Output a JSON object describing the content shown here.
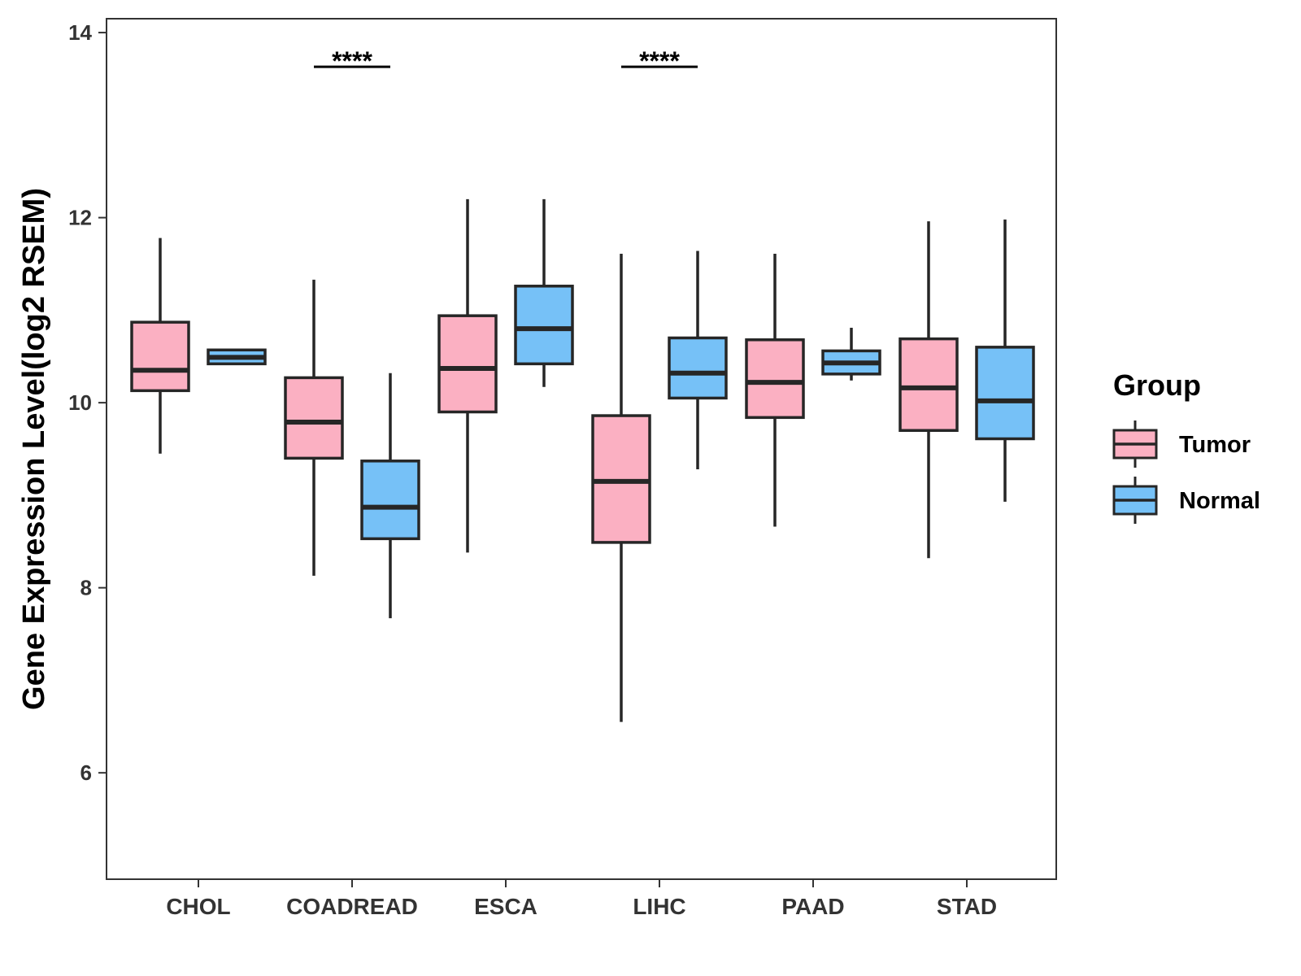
{
  "chart_data": {
    "type": "boxplot",
    "title": "",
    "xlabel": "",
    "ylabel": "Gene Expression Level(log2 RSEM)",
    "ylim": [
      4.85,
      14.15
    ],
    "yticks": [
      6,
      8,
      10,
      12,
      14
    ],
    "categories": [
      "CHOL",
      "COADREAD",
      "ESCA",
      "LIHC",
      "PAAD",
      "STAD"
    ],
    "legend": {
      "title": "Group",
      "position": "right",
      "entries": [
        {
          "name": "Tumor",
          "color": "#FBB0C2"
        },
        {
          "name": "Normal",
          "color": "#76C1F7"
        }
      ]
    },
    "series": [
      {
        "name": "Tumor",
        "color": "#FBB0C2",
        "boxes": [
          {
            "category": "CHOL",
            "min": 9.45,
            "q1": 10.13,
            "median": 10.35,
            "q3": 10.87,
            "max": 11.78
          },
          {
            "category": "COADREAD",
            "min": 8.13,
            "q1": 9.4,
            "median": 9.79,
            "q3": 10.27,
            "max": 11.33
          },
          {
            "category": "ESCA",
            "min": 8.38,
            "q1": 9.9,
            "median": 10.37,
            "q3": 10.94,
            "max": 12.2
          },
          {
            "category": "LIHC",
            "min": 6.55,
            "q1": 8.49,
            "median": 9.15,
            "q3": 9.86,
            "max": 11.61
          },
          {
            "category": "PAAD",
            "min": 8.66,
            "q1": 9.84,
            "median": 10.22,
            "q3": 10.68,
            "max": 11.61
          },
          {
            "category": "STAD",
            "min": 8.32,
            "q1": 9.7,
            "median": 10.16,
            "q3": 10.69,
            "max": 11.96
          }
        ]
      },
      {
        "name": "Normal",
        "color": "#76C1F7",
        "boxes": [
          {
            "category": "CHOL",
            "min": 10.42,
            "q1": 10.42,
            "median": 10.49,
            "q3": 10.57,
            "max": 10.57
          },
          {
            "category": "COADREAD",
            "min": 7.67,
            "q1": 8.53,
            "median": 8.87,
            "q3": 9.37,
            "max": 10.32
          },
          {
            "category": "ESCA",
            "min": 10.17,
            "q1": 10.42,
            "median": 10.8,
            "q3": 11.26,
            "max": 12.2
          },
          {
            "category": "LIHC",
            "min": 9.28,
            "q1": 10.05,
            "median": 10.32,
            "q3": 10.7,
            "max": 11.64
          },
          {
            "category": "PAAD",
            "min": 10.24,
            "q1": 10.31,
            "median": 10.43,
            "q3": 10.56,
            "max": 10.81
          },
          {
            "category": "STAD",
            "min": 8.93,
            "q1": 9.61,
            "median": 10.02,
            "q3": 10.6,
            "max": 11.98
          }
        ]
      }
    ],
    "annotations": [
      {
        "category": "COADREAD",
        "text": "****",
        "y": 13.63
      },
      {
        "category": "LIHC",
        "text": "****",
        "y": 13.63
      }
    ]
  }
}
